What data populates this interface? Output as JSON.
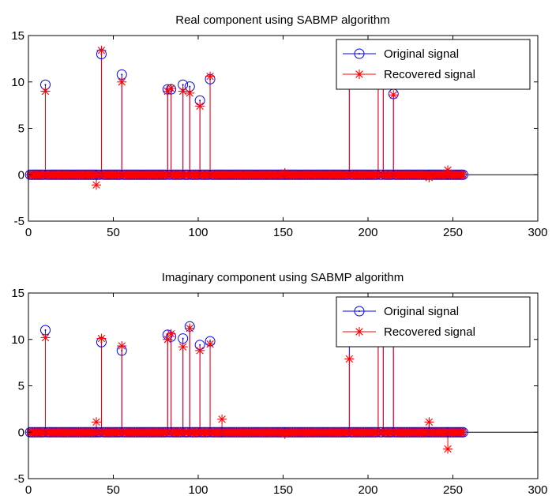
{
  "colors": {
    "original": "#0000ff",
    "recovered": "#ff0000",
    "axis": "#000000"
  },
  "legend_items": [
    {
      "label": "Original signal",
      "marker": "circle-dot",
      "color": "#0000ff"
    },
    {
      "label": "Recovered signal",
      "marker": "asterisk",
      "color": "#ff0000"
    }
  ],
  "chart_data": [
    {
      "type": "stem",
      "title": "Real component using SABMP algorithm",
      "xlabel": "",
      "ylabel": "",
      "xlim": [
        0,
        300
      ],
      "ylim": [
        -5,
        15
      ],
      "xticks": [
        "0",
        "50",
        "100",
        "150",
        "200",
        "250",
        "300"
      ],
      "yticks": [
        "-5",
        "0",
        "5",
        "10",
        "15"
      ],
      "grid": false,
      "legend_position": "top-right",
      "x_range": [
        1,
        256
      ],
      "series": [
        {
          "name": "Original signal",
          "points": [
            [
              10,
              9.7
            ],
            [
              43,
              13
            ],
            [
              55,
              10.8
            ],
            [
              82,
              9.2
            ],
            [
              84,
              9.2
            ],
            [
              91,
              9.7
            ],
            [
              95,
              9.5
            ],
            [
              101,
              8
            ],
            [
              107,
              10.3
            ],
            [
              189,
              10.8
            ],
            [
              206,
              10.8
            ],
            [
              209,
              10.8
            ],
            [
              215,
              8.7
            ]
          ]
        },
        {
          "name": "Recovered signal",
          "points": [
            [
              10,
              9.0
            ],
            [
              40,
              -1.1
            ],
            [
              43,
              13.4
            ],
            [
              55,
              10.0
            ],
            [
              82,
              9.0
            ],
            [
              84,
              9.3
            ],
            [
              91,
              9.0
            ],
            [
              95,
              8.8
            ],
            [
              101,
              7.4
            ],
            [
              107,
              10.6
            ],
            [
              151,
              0.2
            ],
            [
              189,
              10.5
            ],
            [
              206,
              10.5
            ],
            [
              209,
              10.5
            ],
            [
              215,
              8.6
            ],
            [
              236,
              -0.3
            ],
            [
              247,
              0.5
            ]
          ]
        }
      ]
    },
    {
      "type": "stem",
      "title": "Imaginary component using SABMP algorithm",
      "xlabel": "",
      "ylabel": "",
      "xlim": [
        0,
        300
      ],
      "ylim": [
        -5,
        15
      ],
      "xticks": [
        "0",
        "50",
        "100",
        "150",
        "200",
        "250",
        "300"
      ],
      "yticks": [
        "-5",
        "0",
        "5",
        "10",
        "15"
      ],
      "grid": false,
      "legend_position": "top-right",
      "x_range": [
        1,
        256
      ],
      "series": [
        {
          "name": "Original signal",
          "points": [
            [
              10,
              11
            ],
            [
              43,
              9.7
            ],
            [
              55,
              8.8
            ],
            [
              82,
              10.5
            ],
            [
              84,
              10.3
            ],
            [
              91,
              10.1
            ],
            [
              95,
              11.4
            ],
            [
              101,
              9.4
            ],
            [
              107,
              9.8
            ],
            [
              189,
              10.5
            ],
            [
              206,
              10.5
            ],
            [
              209,
              10.5
            ],
            [
              215,
              10.5
            ]
          ]
        },
        {
          "name": "Recovered signal",
          "points": [
            [
              10,
              10.2
            ],
            [
              40,
              1.1
            ],
            [
              43,
              10.1
            ],
            [
              55,
              9.3
            ],
            [
              82,
              10.0
            ],
            [
              84,
              10.6
            ],
            [
              91,
              9.2
            ],
            [
              95,
              11.2
            ],
            [
              101,
              8.8
            ],
            [
              107,
              9.5
            ],
            [
              114,
              1.4
            ],
            [
              151,
              -0.2
            ],
            [
              189,
              7.9
            ],
            [
              206,
              10.0
            ],
            [
              209,
              10.0
            ],
            [
              215,
              10.0
            ],
            [
              236,
              1.1
            ],
            [
              247,
              -1.8
            ]
          ]
        }
      ]
    }
  ]
}
